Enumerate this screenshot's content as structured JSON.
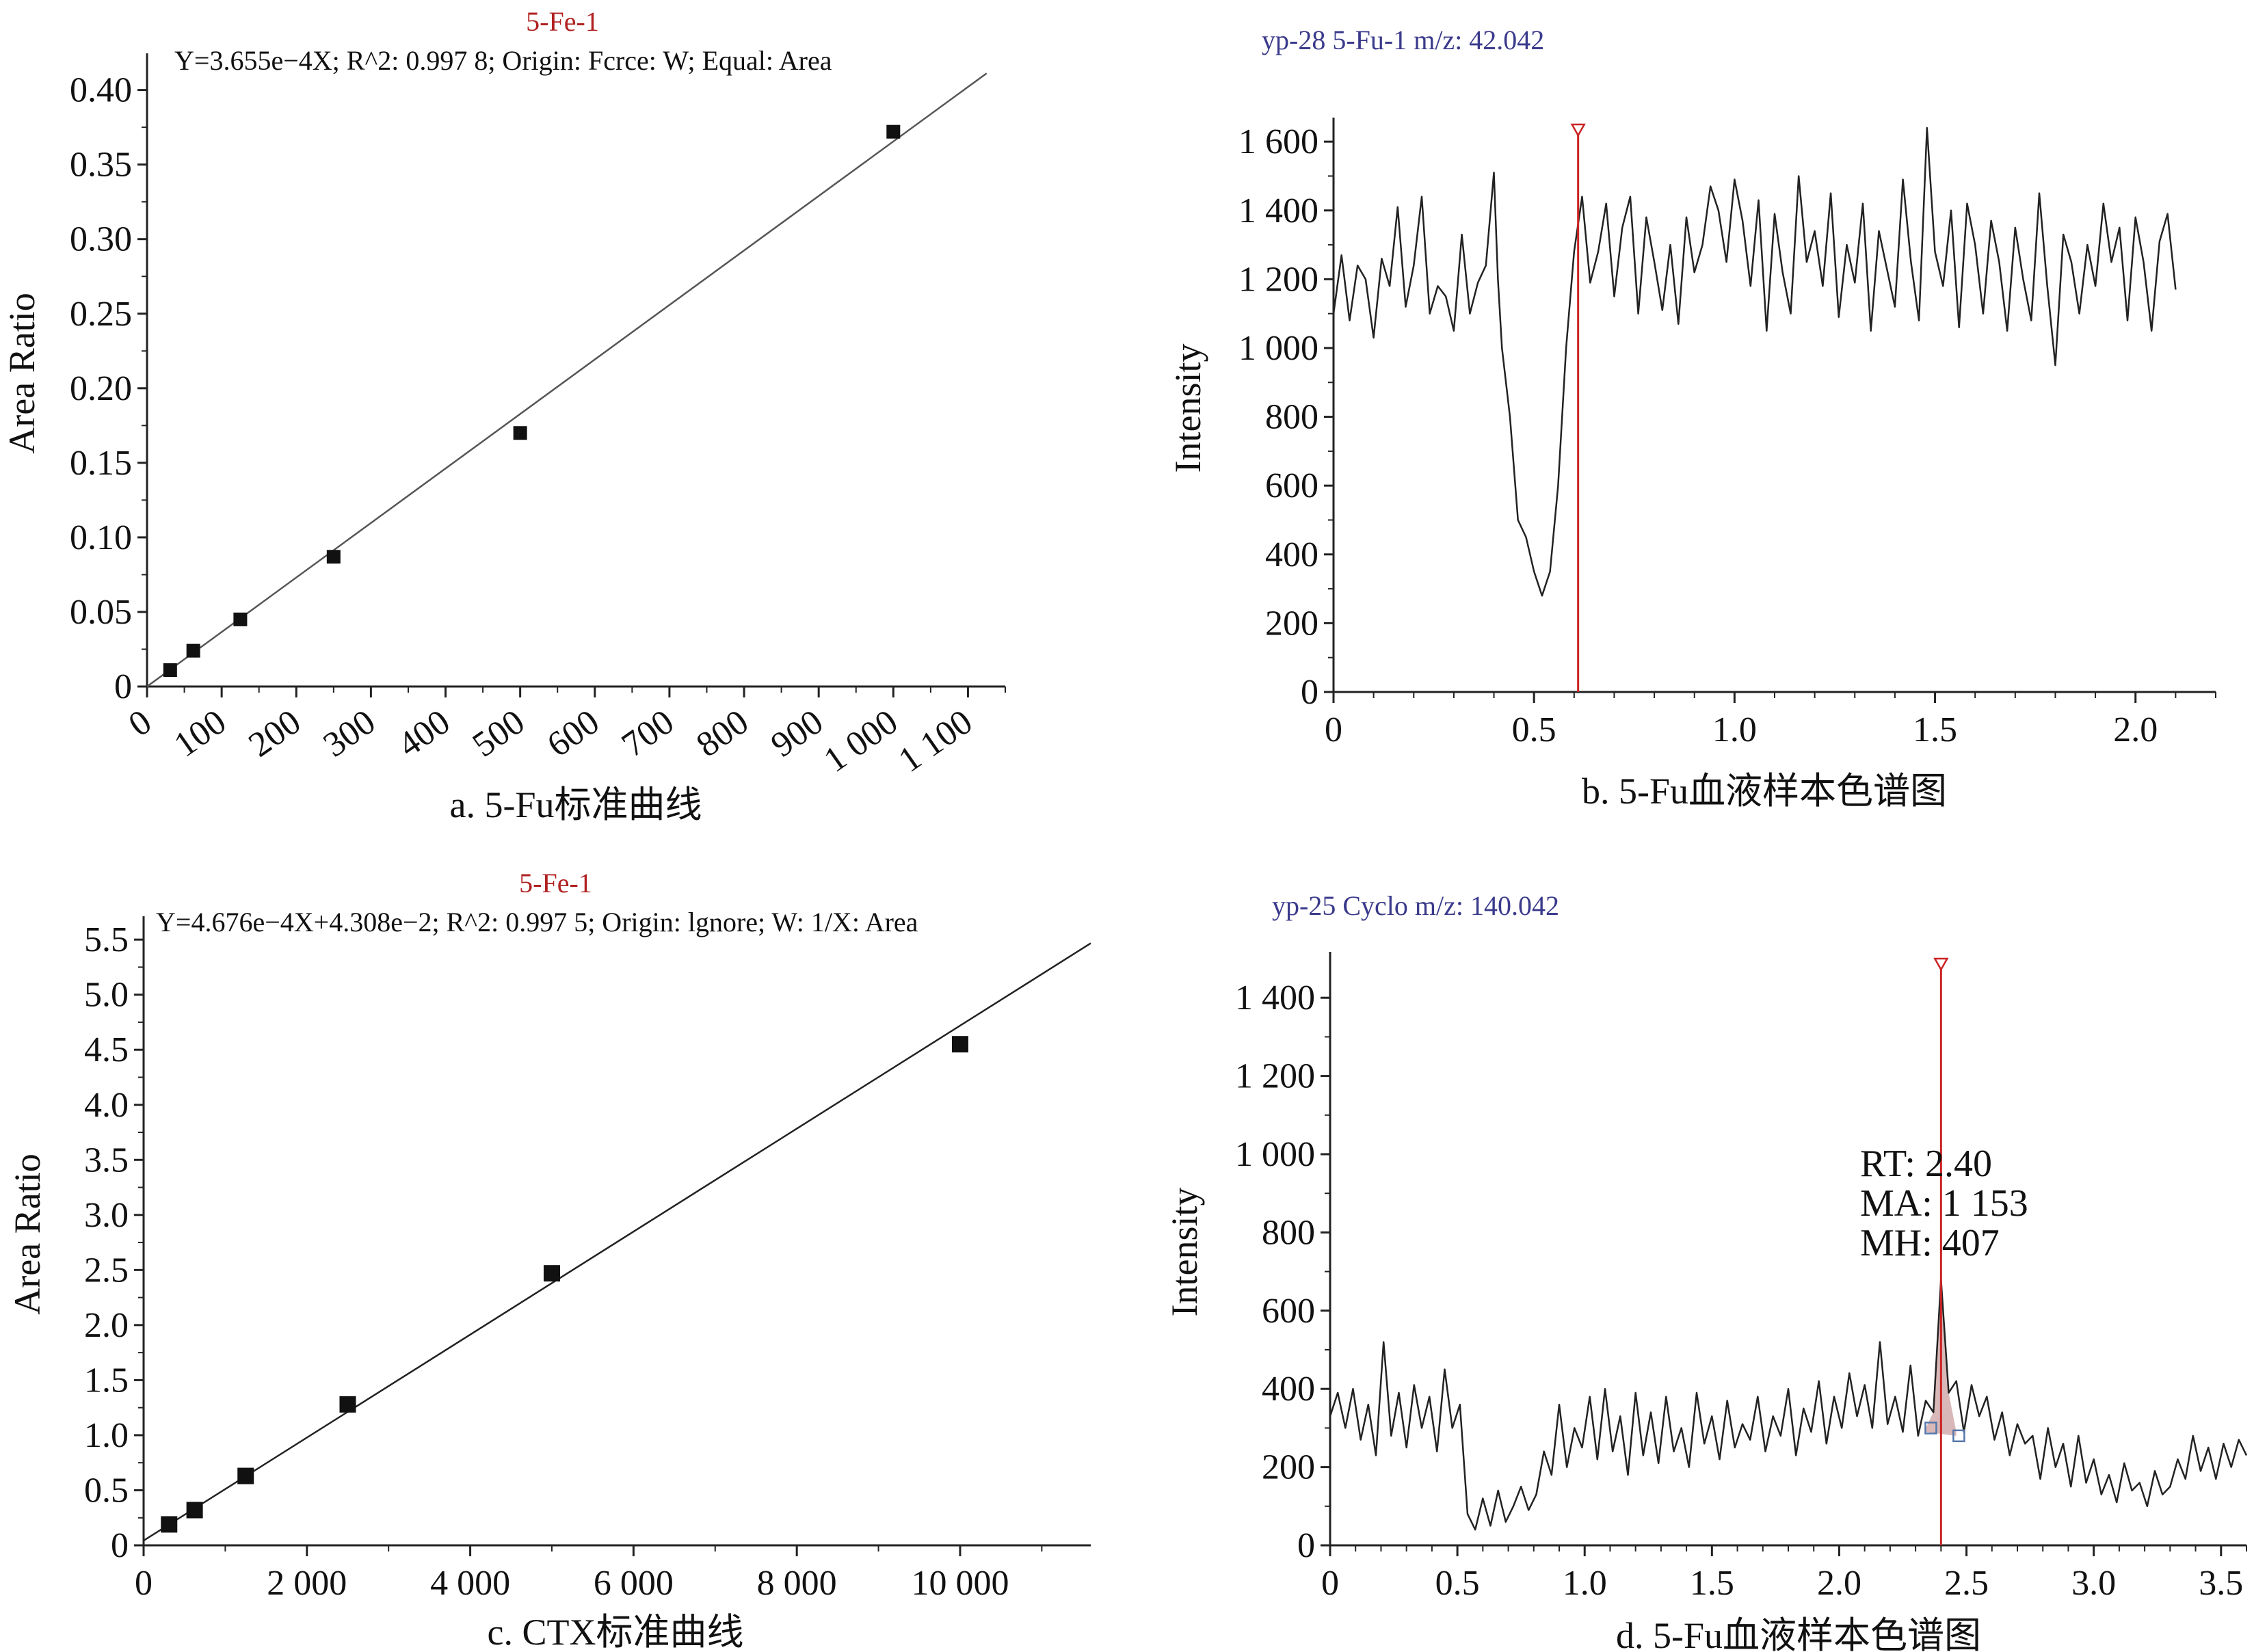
{
  "chart_data": [
    {
      "type": "scatter",
      "panel": "a",
      "header": "5-Fe-1",
      "equation": "Y=3.655e−4X; R^2: 0.997 8; Origin: Fcrce: W; Equal: Area",
      "caption": "a. 5-Fu标准曲线",
      "xlabel": "",
      "ylabel": "Area Ratio",
      "xlim": [
        0,
        1150
      ],
      "ylim": [
        0,
        0.42
      ],
      "xticks": [
        0,
        100,
        200,
        300,
        400,
        500,
        600,
        700,
        800,
        900,
        1000,
        1100
      ],
      "xtick_labels": [
        "0",
        "100",
        "200",
        "300",
        "400",
        "500",
        "600",
        "700",
        "800",
        "900",
        "1 000",
        "1 100"
      ],
      "yticks": [
        0,
        0.05,
        0.1,
        0.15,
        0.2,
        0.25,
        0.3,
        0.35,
        0.4
      ],
      "ytick_labels": [
        "0",
        "0.05",
        "0.10",
        "0.15",
        "0.20",
        "0.25",
        "0.30",
        "0.35",
        "0.40"
      ],
      "points": [
        [
          31,
          0.011
        ],
        [
          62,
          0.024
        ],
        [
          125,
          0.045
        ],
        [
          250,
          0.087
        ],
        [
          500,
          0.17
        ],
        [
          1000,
          0.372
        ]
      ],
      "fit": {
        "slope": 0.0003655,
        "intercept": 0,
        "x_end": 1125
      },
      "colors": {
        "header": "#b02020",
        "line": "#555555",
        "marker": "#111111"
      }
    },
    {
      "type": "line",
      "panel": "b",
      "header": "yp-28 5-Fu-1 m/z: 42.042",
      "caption": "b. 5-Fu血液样本色谱图",
      "xlabel": "",
      "ylabel": "Intensity",
      "xlim": [
        0,
        2.2
      ],
      "ylim": [
        0,
        1650
      ],
      "xticks": [
        0,
        0.5,
        1.0,
        1.5,
        2.0
      ],
      "xtick_labels": [
        "0",
        "0.5",
        "1.0",
        "1.5",
        "2.0"
      ],
      "yticks": [
        0,
        200,
        400,
        600,
        800,
        1000,
        1200,
        1400,
        1600
      ],
      "ytick_labels": [
        "0",
        "200",
        "400",
        "600",
        "800",
        "1 000",
        "1 200",
        "1 400",
        "1 600"
      ],
      "marker_x": 0.61,
      "x": [
        0.0,
        0.02,
        0.04,
        0.06,
        0.08,
        0.1,
        0.12,
        0.14,
        0.16,
        0.18,
        0.2,
        0.22,
        0.24,
        0.26,
        0.28,
        0.3,
        0.32,
        0.34,
        0.36,
        0.38,
        0.4,
        0.41,
        0.42,
        0.44,
        0.46,
        0.48,
        0.5,
        0.52,
        0.54,
        0.56,
        0.58,
        0.6,
        0.62,
        0.64,
        0.66,
        0.68,
        0.7,
        0.72,
        0.74,
        0.76,
        0.78,
        0.8,
        0.82,
        0.84,
        0.86,
        0.88,
        0.9,
        0.92,
        0.94,
        0.96,
        0.98,
        1.0,
        1.02,
        1.04,
        1.06,
        1.08,
        1.1,
        1.12,
        1.14,
        1.16,
        1.18,
        1.2,
        1.22,
        1.24,
        1.26,
        1.28,
        1.3,
        1.32,
        1.34,
        1.36,
        1.38,
        1.4,
        1.42,
        1.44,
        1.46,
        1.48,
        1.5,
        1.52,
        1.54,
        1.56,
        1.58,
        1.6,
        1.62,
        1.64,
        1.66,
        1.68,
        1.7,
        1.72,
        1.74,
        1.76,
        1.78,
        1.8,
        1.82,
        1.84,
        1.86,
        1.88,
        1.9,
        1.92,
        1.94,
        1.96,
        1.98,
        2.0,
        2.02,
        2.04,
        2.06,
        2.08,
        2.1
      ],
      "y": [
        1100,
        1270,
        1080,
        1240,
        1200,
        1030,
        1260,
        1180,
        1410,
        1120,
        1240,
        1440,
        1100,
        1180,
        1150,
        1050,
        1330,
        1100,
        1190,
        1240,
        1510,
        1200,
        1000,
        800,
        500,
        450,
        350,
        280,
        350,
        600,
        1000,
        1280,
        1440,
        1190,
        1280,
        1420,
        1150,
        1350,
        1440,
        1100,
        1380,
        1250,
        1110,
        1300,
        1070,
        1380,
        1220,
        1300,
        1470,
        1400,
        1250,
        1490,
        1370,
        1180,
        1430,
        1050,
        1390,
        1220,
        1100,
        1500,
        1250,
        1340,
        1180,
        1450,
        1090,
        1300,
        1190,
        1420,
        1050,
        1340,
        1230,
        1120,
        1490,
        1250,
        1080,
        1640,
        1280,
        1180,
        1400,
        1060,
        1420,
        1300,
        1100,
        1370,
        1250,
        1050,
        1350,
        1200,
        1080,
        1450,
        1180,
        950,
        1330,
        1250,
        1100,
        1300,
        1180,
        1420,
        1250,
        1350,
        1080,
        1380,
        1250,
        1050,
        1310,
        1390,
        1170
      ],
      "colors": {
        "header": "#3a3a8c",
        "line": "#222222",
        "marker": "#cc2222"
      }
    },
    {
      "type": "scatter",
      "panel": "c",
      "header": "5-Fe-1",
      "equation": "Y=4.676e−4X+4.308e−2; R^2: 0.997 5; Origin: lgnore; W: 1/X: Area",
      "caption": "c. CTX标准曲线",
      "xlabel": "",
      "ylabel": "Area Ratio",
      "xlim": [
        0,
        11600
      ],
      "ylim": [
        0,
        5.65
      ],
      "xticks": [
        0,
        2000,
        4000,
        6000,
        8000,
        10000
      ],
      "xtick_labels": [
        "0",
        "2 000",
        "4 000",
        "6 000",
        "8 000",
        "10 000"
      ],
      "yticks": [
        0,
        0.5,
        1.0,
        1.5,
        2.0,
        2.5,
        3.0,
        3.5,
        4.0,
        4.5,
        5.0,
        5.5
      ],
      "ytick_labels": [
        "0",
        "0.5",
        "1.0",
        "1.5",
        "2.0",
        "2.5",
        "3.0",
        "3.5",
        "4.0",
        "4.5",
        "5.0",
        "5.5"
      ],
      "points": [
        [
          312,
          0.19
        ],
        [
          625,
          0.32
        ],
        [
          1250,
          0.63
        ],
        [
          2500,
          1.28
        ],
        [
          5000,
          2.47
        ],
        [
          10000,
          4.55
        ]
      ],
      "fit": {
        "slope": 0.0004676,
        "intercept": 0.04308,
        "x_end": 11600
      },
      "colors": {
        "header": "#b02020",
        "line": "#222222",
        "marker": "#111111"
      }
    },
    {
      "type": "line",
      "panel": "d",
      "header": "yp-25 Cyclo m/z: 140.042",
      "caption": "d. 5-Fu血液样本色谱图",
      "xlabel": "",
      "ylabel": "Intensity",
      "xlim": [
        0,
        3.6
      ],
      "ylim": [
        0,
        1500
      ],
      "xticks": [
        0,
        0.5,
        1.0,
        1.5,
        2.0,
        2.5,
        3.0,
        3.5
      ],
      "xtick_labels": [
        "0",
        "0.5",
        "1.0",
        "1.5",
        "2.0",
        "2.5",
        "3.0",
        "3.5"
      ],
      "yticks": [
        0,
        200,
        400,
        600,
        800,
        1000,
        1200,
        1400
      ],
      "ytick_labels": [
        "0",
        "200",
        "400",
        "600",
        "800",
        "1 000",
        "1 200",
        "1 400"
      ],
      "marker_x": 2.4,
      "annotation": [
        "RT: 2.40",
        "MA: 1 153",
        "MH: 407"
      ],
      "x": [
        0.0,
        0.03,
        0.06,
        0.09,
        0.12,
        0.15,
        0.18,
        0.21,
        0.24,
        0.27,
        0.3,
        0.33,
        0.36,
        0.39,
        0.42,
        0.45,
        0.48,
        0.51,
        0.54,
        0.57,
        0.6,
        0.63,
        0.66,
        0.69,
        0.72,
        0.75,
        0.78,
        0.81,
        0.84,
        0.87,
        0.9,
        0.93,
        0.96,
        0.99,
        1.02,
        1.05,
        1.08,
        1.11,
        1.14,
        1.17,
        1.2,
        1.23,
        1.26,
        1.29,
        1.32,
        1.35,
        1.38,
        1.41,
        1.44,
        1.47,
        1.5,
        1.53,
        1.56,
        1.59,
        1.62,
        1.65,
        1.68,
        1.71,
        1.74,
        1.77,
        1.8,
        1.83,
        1.86,
        1.89,
        1.92,
        1.95,
        1.98,
        2.01,
        2.04,
        2.07,
        2.1,
        2.13,
        2.16,
        2.19,
        2.22,
        2.25,
        2.28,
        2.31,
        2.34,
        2.37,
        2.4,
        2.43,
        2.46,
        2.49,
        2.52,
        2.55,
        2.58,
        2.61,
        2.64,
        2.67,
        2.7,
        2.73,
        2.76,
        2.79,
        2.82,
        2.85,
        2.88,
        2.91,
        2.94,
        2.97,
        3.0,
        3.03,
        3.06,
        3.09,
        3.12,
        3.15,
        3.18,
        3.21,
        3.24,
        3.27,
        3.3,
        3.33,
        3.36,
        3.39,
        3.42,
        3.45,
        3.48,
        3.51,
        3.54,
        3.57,
        3.6
      ],
      "y": [
        330,
        390,
        300,
        400,
        270,
        360,
        230,
        520,
        280,
        390,
        250,
        410,
        300,
        380,
        240,
        450,
        300,
        360,
        80,
        40,
        120,
        50,
        140,
        60,
        100,
        150,
        90,
        130,
        240,
        180,
        360,
        200,
        300,
        250,
        380,
        220,
        400,
        240,
        330,
        180,
        390,
        230,
        340,
        210,
        380,
        240,
        300,
        200,
        390,
        260,
        330,
        220,
        370,
        250,
        310,
        270,
        380,
        240,
        330,
        280,
        400,
        230,
        350,
        290,
        420,
        260,
        380,
        300,
        440,
        330,
        410,
        300,
        520,
        310,
        380,
        290,
        460,
        280,
        370,
        340,
        680,
        390,
        420,
        290,
        410,
        330,
        380,
        270,
        340,
        230,
        310,
        260,
        280,
        170,
        300,
        200,
        260,
        150,
        280,
        160,
        220,
        130,
        180,
        110,
        210,
        140,
        160,
        100,
        190,
        130,
        150,
        220,
        170,
        280,
        190,
        250,
        170,
        260,
        200,
        270,
        230
      ],
      "colors": {
        "header": "#3a3a8c",
        "line": "#222222",
        "marker": "#cc2222",
        "peak_fill": "#d8b8b8",
        "baseline_box": "#5577aa"
      }
    }
  ]
}
